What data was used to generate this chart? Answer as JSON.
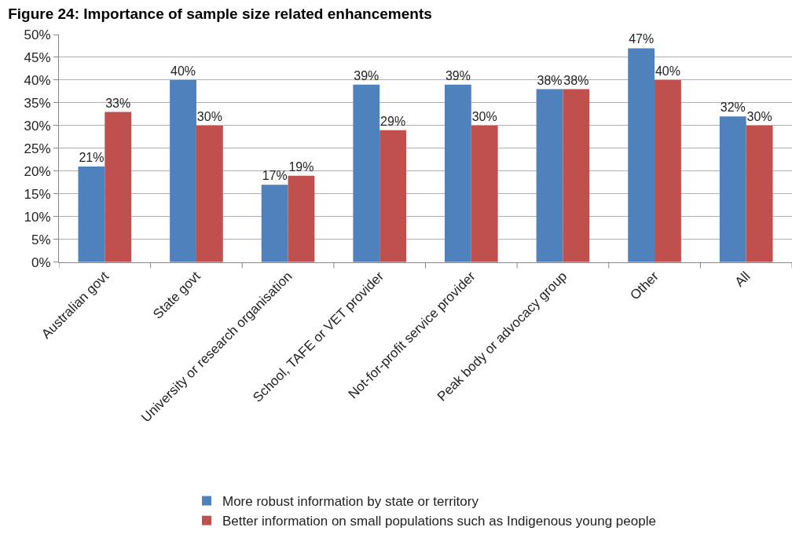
{
  "chart_data": {
    "type": "bar",
    "title": "Figure 24: Importance of sample size related enhancements",
    "categories": [
      "Australian govt",
      "State govt",
      "University or research organisation",
      "School, TAFE or VET provider",
      "Not-for-profit service provider",
      "Peak body or advocacy group",
      "Other",
      "All"
    ],
    "series": [
      {
        "name": "More robust information by state or territory",
        "color": "#4f81bd",
        "values": [
          21,
          40,
          17,
          39,
          39,
          38,
          47,
          32
        ],
        "value_labels": [
          "21%",
          "40%",
          "17%",
          "39%",
          "39%",
          "38%",
          "47%",
          "32%"
        ]
      },
      {
        "name": "Better information on small populations such as Indigenous young people",
        "color": "#c0504d",
        "values": [
          33,
          30,
          19,
          29,
          30,
          38,
          40,
          30
        ],
        "value_labels": [
          "33%",
          "30%",
          "19%",
          "29%",
          "30%",
          "38%",
          "40%",
          "30%"
        ]
      }
    ],
    "ylim": [
      0,
      50
    ],
    "yticks": [
      {
        "value": 0,
        "label": "0%"
      },
      {
        "value": 5,
        "label": "5%"
      },
      {
        "value": 10,
        "label": "10%"
      },
      {
        "value": 15,
        "label": "15%"
      },
      {
        "value": 20,
        "label": "20%"
      },
      {
        "value": 25,
        "label": "25%"
      },
      {
        "value": 30,
        "label": "30%"
      },
      {
        "value": 35,
        "label": "35%"
      },
      {
        "value": 40,
        "label": "40%"
      },
      {
        "value": 45,
        "label": "45%"
      },
      {
        "value": 50,
        "label": "50%"
      }
    ],
    "grid": "y",
    "legend": "bottom"
  }
}
